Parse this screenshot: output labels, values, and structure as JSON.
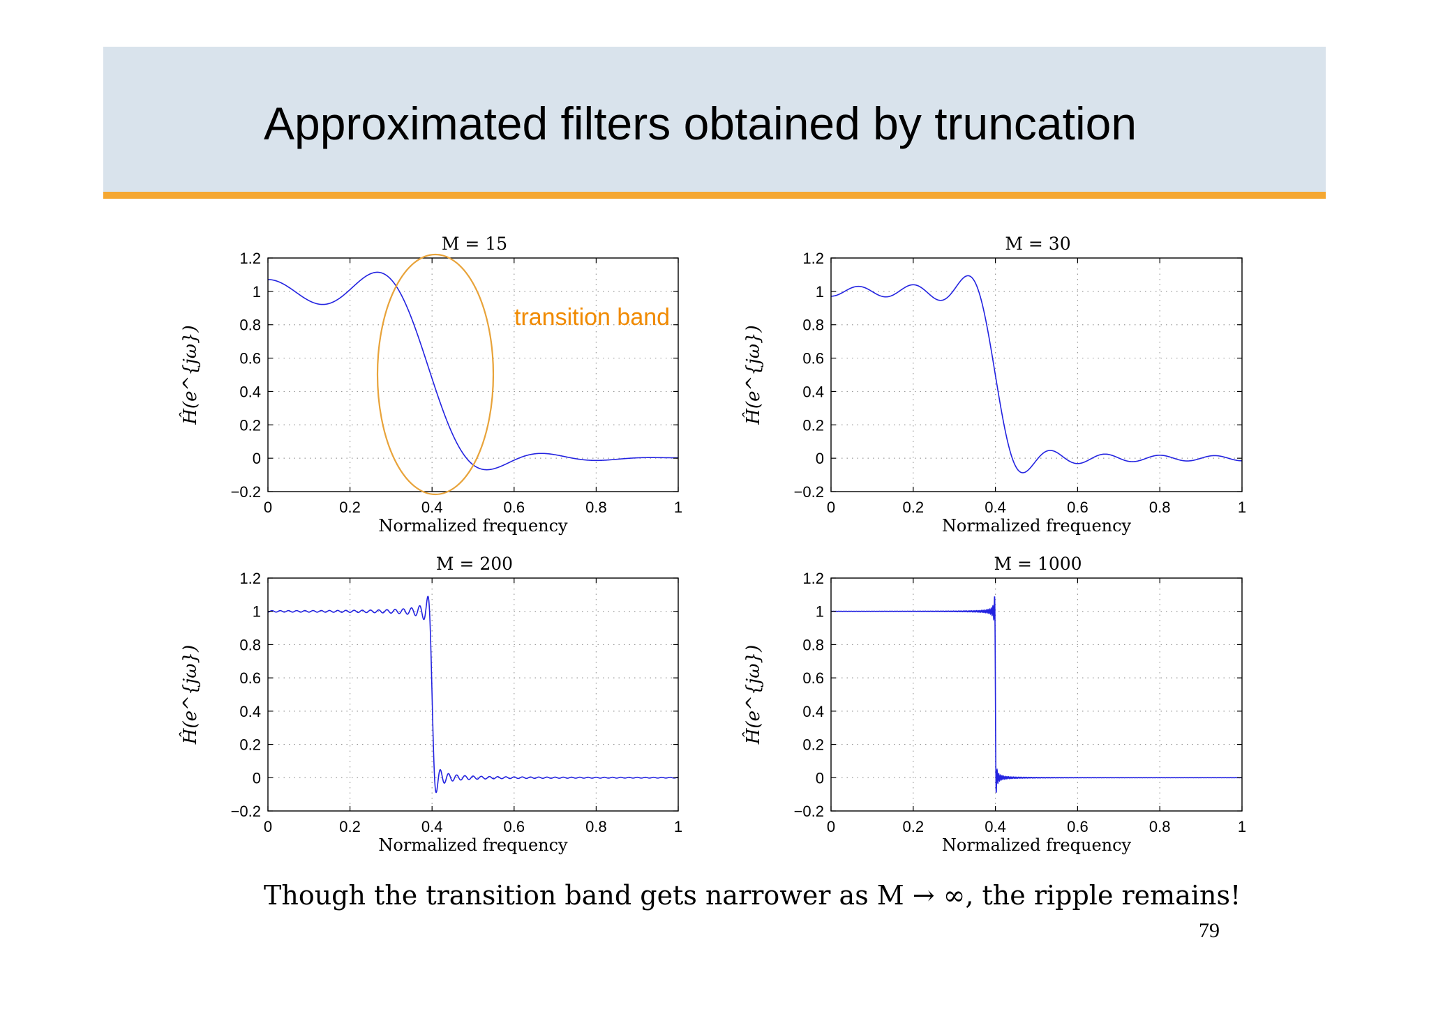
{
  "slide": {
    "title": "Approximated filters obtained by truncation",
    "caption": "Though the transition band gets narrower as M → ∞, the ripple remains!",
    "page_number": "79"
  },
  "annotation": {
    "label": "transition band",
    "color": "#f08a00",
    "ellipse_color": "#e8a33a"
  },
  "colors": {
    "header_bg": "#d9e3ec",
    "header_bar": "#f5a731",
    "curve": "#2323e0"
  },
  "chart_data": [
    {
      "type": "line",
      "title": "M = 15",
      "xlabel": "Normalized frequency",
      "ylabel": "Ĥ(e^{jω})",
      "xlim": [
        0,
        1
      ],
      "ylim": [
        -0.2,
        1.2
      ],
      "xticks": [
        "0",
        "0.2",
        "0.4",
        "0.6",
        "0.8",
        "1"
      ],
      "yticks": [
        "−0.2",
        "0",
        "0.2",
        "0.4",
        "0.6",
        "0.8",
        "1",
        "1.2"
      ],
      "grid": true,
      "series": [
        {
          "M": 15,
          "cutoff": 0.4
        }
      ]
    },
    {
      "type": "line",
      "title": "M = 30",
      "xlabel": "Normalized frequency",
      "ylabel": "Ĥ(e^{jω})",
      "xlim": [
        0,
        1
      ],
      "ylim": [
        -0.2,
        1.2
      ],
      "xticks": [
        "0",
        "0.2",
        "0.4",
        "0.6",
        "0.8",
        "1"
      ],
      "yticks": [
        "−0.2",
        "0",
        "0.2",
        "0.4",
        "0.6",
        "0.8",
        "1",
        "1.2"
      ],
      "grid": true,
      "series": [
        {
          "M": 30,
          "cutoff": 0.4
        }
      ]
    },
    {
      "type": "line",
      "title": "M = 200",
      "xlabel": "Normalized frequency",
      "ylabel": "Ĥ(e^{jω})",
      "xlim": [
        0,
        1
      ],
      "ylim": [
        -0.2,
        1.2
      ],
      "xticks": [
        "0",
        "0.2",
        "0.4",
        "0.6",
        "0.8",
        "1"
      ],
      "yticks": [
        "−0.2",
        "0",
        "0.2",
        "0.4",
        "0.6",
        "0.8",
        "1",
        "1.2"
      ],
      "grid": true,
      "series": [
        {
          "M": 200,
          "cutoff": 0.4
        }
      ]
    },
    {
      "type": "line",
      "title": "M = 1000",
      "xlabel": "Normalized frequency",
      "ylabel": "Ĥ(e^{jω})",
      "xlim": [
        0,
        1
      ],
      "ylim": [
        -0.2,
        1.2
      ],
      "xticks": [
        "0",
        "0.2",
        "0.4",
        "0.6",
        "0.8",
        "1"
      ],
      "yticks": [
        "−0.2",
        "0",
        "0.2",
        "0.4",
        "0.6",
        "0.8",
        "1",
        "1.2"
      ],
      "grid": true,
      "series": [
        {
          "M": 1000,
          "cutoff": 0.4
        }
      ]
    }
  ]
}
